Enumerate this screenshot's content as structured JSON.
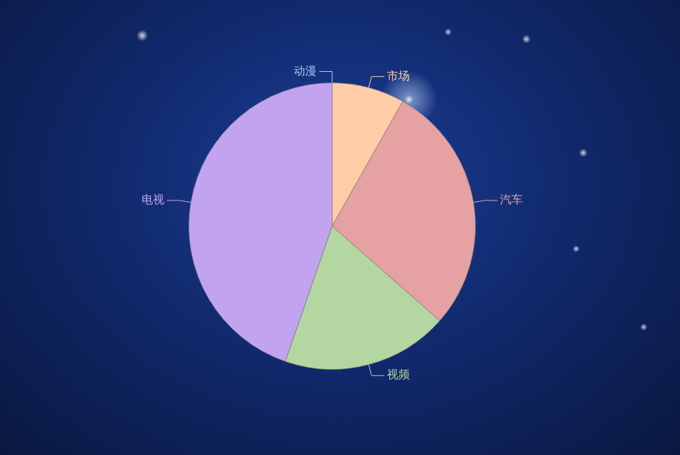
{
  "chart_data": {
    "type": "pie",
    "categories": [
      "市场",
      "汽车",
      "视频",
      "电视",
      "动漫"
    ],
    "values": [
      8.2,
      28.3,
      18.8,
      44.7,
      0
    ],
    "colors": [
      "#fecca6",
      "#e6a2a3",
      "#b4d6a0",
      "#c2a3ef",
      "#a9c9f2"
    ]
  }
}
